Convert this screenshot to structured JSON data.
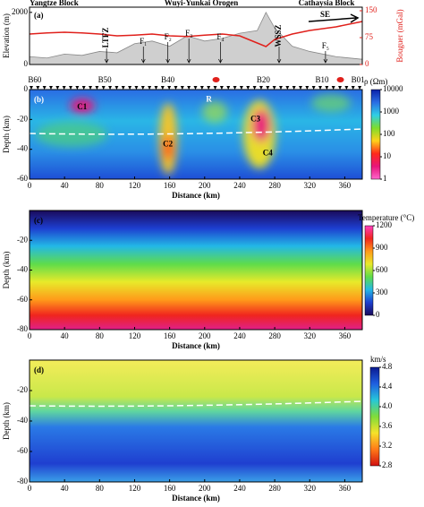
{
  "header": {
    "left": "Yangtze Block",
    "center": "Wuyi-Yunkai Orogen",
    "right": "Cathaysia Block"
  },
  "chart_data": [
    {
      "type": "line",
      "panel_label": "(a)",
      "direction": "SE",
      "y_label": "Elevation (m)",
      "y2_label": "Bouguer (mGal)",
      "faults": [
        "LTFZ",
        "F₁",
        "F₂",
        "F₃",
        "F₄",
        "WSSZ",
        "F₅"
      ],
      "x": [
        0,
        20,
        40,
        60,
        80,
        100,
        120,
        140,
        160,
        180,
        200,
        220,
        240,
        260,
        270,
        280,
        300,
        320,
        350,
        380
      ],
      "series": [
        {
          "name": "Elevation",
          "color": "#888888",
          "values": [
            300,
            250,
            400,
            350,
            500,
            450,
            800,
            900,
            700,
            1100,
            900,
            1000,
            1200,
            1300,
            2000,
            1400,
            700,
            500,
            300,
            200
          ]
        },
        {
          "name": "Bouguer",
          "color": "#e0201b",
          "axis": "y2",
          "values": [
            85,
            88,
            90,
            88,
            85,
            80,
            82,
            85,
            80,
            78,
            82,
            85,
            80,
            60,
            50,
            70,
            85,
            95,
            105,
            120
          ]
        }
      ],
      "xlim": [
        0,
        380
      ],
      "ylim": [
        0,
        2200
      ],
      "yticks": [
        0,
        2000
      ],
      "y2lim": [
        0,
        160
      ],
      "y2ticks": [
        0,
        75,
        150
      ]
    },
    {
      "type": "heatmap",
      "panel_label": "(b)",
      "stations": [
        "B60",
        "B50",
        "B40",
        "B20",
        "B10",
        "B01"
      ],
      "anomalies": [
        "C1",
        "C2",
        "C3",
        "C4",
        "R"
      ],
      "x_label": "Distance (km)",
      "y_label": "Depth (km)",
      "xlim": [
        0,
        380
      ],
      "xticks": [
        0,
        40,
        80,
        120,
        160,
        200,
        240,
        280,
        320,
        360
      ],
      "ylim": [
        -60,
        0
      ],
      "yticks": [
        0,
        -20,
        -40,
        -60
      ],
      "colorbar": {
        "title": "ρ (Ωm)",
        "log": true,
        "lim": [
          1,
          10000
        ],
        "ticks": [
          1,
          10,
          100,
          1000,
          10000
        ],
        "colors": [
          "#ff66cc",
          "#e8157a",
          "#ff2a1a",
          "#ffd21a",
          "#7ddc2c",
          "#2ecfe6",
          "#2a6de4",
          "#0b20a8"
        ]
      }
    },
    {
      "type": "heatmap",
      "panel_label": "(c)",
      "x_label": "Distance (km)",
      "y_label": "Depth (km)",
      "xlim": [
        0,
        380
      ],
      "xticks": [
        0,
        40,
        80,
        120,
        160,
        200,
        240,
        280,
        320,
        360
      ],
      "ylim": [
        -80,
        0
      ],
      "yticks": [
        -20,
        -40,
        -60,
        -80
      ],
      "colorbar": {
        "title": "Temperature (°C)",
        "log": false,
        "lim": [
          0,
          1200
        ],
        "ticks": [
          0,
          300,
          600,
          900,
          1200
        ],
        "colors": [
          "#1a0a5a",
          "#1d3fd0",
          "#23b8e6",
          "#5fdc4a",
          "#e8ea2a",
          "#ff9a1a",
          "#f0241e",
          "#ff3fbf"
        ]
      }
    },
    {
      "type": "heatmap",
      "panel_label": "(d)",
      "x_label": "Distance (km)",
      "y_label": "Depth (km)",
      "xlim": [
        0,
        380
      ],
      "xticks": [
        0,
        40,
        80,
        120,
        160,
        200,
        240,
        280,
        320,
        360
      ],
      "ylim": [
        -80,
        0
      ],
      "yticks": [
        -20,
        -40,
        -60,
        -80
      ],
      "colorbar": {
        "title": "km/s",
        "log": false,
        "lim": [
          2.8,
          4.8
        ],
        "ticks": [
          2.8,
          3.2,
          3.6,
          {
            "value": 4,
            "label": "4.0"
          },
          4.4,
          4.8
        ],
        "colors": [
          "#d11010",
          "#ff7a18",
          "#f6e22a",
          "#7fdc3a",
          "#26c7d9",
          "#1f5fe0",
          "#0b1a90"
        ]
      }
    }
  ]
}
